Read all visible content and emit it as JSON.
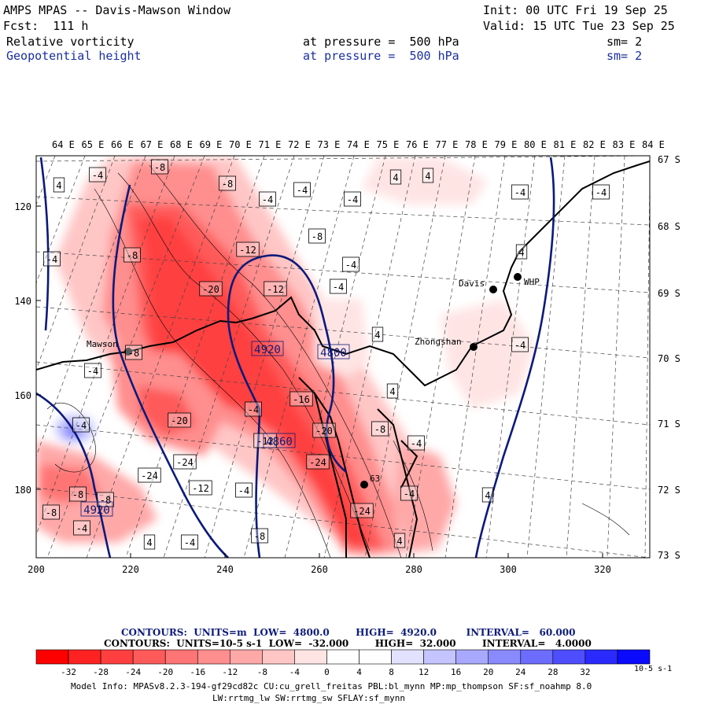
{
  "header": {
    "title": "AMPS MPAS -- Davis-Mawson Window",
    "forecast": "Fcst:  111 h",
    "init": "Init: 00 UTC Fri 19 Sep 25",
    "valid": "Valid: 15 UTC Tue 23 Sep 25",
    "field1": {
      "name": "Relative vorticity",
      "level": "at pressure =  500 hPa",
      "sm": "sm= 2"
    },
    "field2": {
      "name": "Geopotential height",
      "level": "at pressure =  500 hPa",
      "sm": "sm= 2"
    }
  },
  "map": {
    "lon_labels": [
      "64 E",
      "65 E",
      "66 E",
      "67 E",
      "68 E",
      "69 E",
      "70 E",
      "71 E",
      "72 E",
      "73 E",
      "74 E",
      "75 E",
      "76 E",
      "77 E",
      "78 E",
      "79 E",
      "80 E",
      "81 E",
      "82 E",
      "83 E",
      "84 E"
    ],
    "lat_labels": [
      "67 S",
      "68 S",
      "69 S",
      "70 S",
      "71 S",
      "72 S",
      "73 S"
    ],
    "x_ticks": [
      "200",
      "220",
      "240",
      "260",
      "280",
      "300",
      "320"
    ],
    "y_ticks": [
      "120",
      "140",
      "160",
      "180"
    ],
    "stations": [
      "Davis",
      "WHP",
      "Zhongshan",
      "Mawson",
      "63"
    ],
    "height_labels": [
      "4920",
      "4800",
      "4860",
      "4920"
    ],
    "vort_labels": [
      "-4",
      "-8",
      "-8",
      "4",
      "-4",
      "-4",
      "-4",
      "4",
      "4",
      "-8",
      "-12",
      "-20",
      "-12",
      "-8",
      "-4",
      "-4",
      "4",
      "-8",
      "-4",
      "4",
      "-4",
      "-4",
      "4",
      "-4",
      "-20",
      "-12",
      "-16",
      "-20",
      "-24",
      "-8",
      "-4",
      "-24",
      "-24",
      "-12",
      "-4",
      "-8",
      "-8",
      "-4",
      "-8",
      "4",
      "-4",
      "-8",
      "4",
      "-4",
      "-24",
      "4",
      "-4",
      "-4",
      "-4"
    ]
  },
  "contour_info": {
    "line1": "CONTOURS:  UNITS=m  LOW=  4800.0        HIGH=  4920.0         INTERVAL=   60.000",
    "line2": "CONTOURS:  UNITS=10-5 s-1  LOW=  -32.000        HIGH=  32.000        INTERVAL=   4.0000"
  },
  "colorbar": {
    "labels": [
      "-32",
      "-28",
      "-24",
      "-20",
      "-16",
      "-12",
      "-8",
      "-4",
      "0",
      "4",
      "8",
      "12",
      "16",
      "20",
      "24",
      "28",
      "32"
    ],
    "unit": "10-5 s-1",
    "colors": [
      "#ff0000",
      "#ff2222",
      "#ff3f3f",
      "#ff5a5a",
      "#ff7474",
      "#ff8e8e",
      "#ffa8a8",
      "#ffc6c6",
      "#ffe4e4",
      "#ffffff",
      "#ffffff",
      "#e2e2ff",
      "#c4c4ff",
      "#a8a8ff",
      "#8a8aff",
      "#6c6cff",
      "#4e4eff",
      "#2a2aff",
      "#0a0aff"
    ]
  },
  "model_info": {
    "line1": "Model Info: MPASv8.2.3-194-gf29cd82c CU:cu_grell_freitas PBL:bl_mynn MP:mp_thompson SF:sf_noahmp 8.0",
    "line2": "LW:rrtmg_lw SW:rrtmg_sw SFLAY:sf_mynn"
  }
}
